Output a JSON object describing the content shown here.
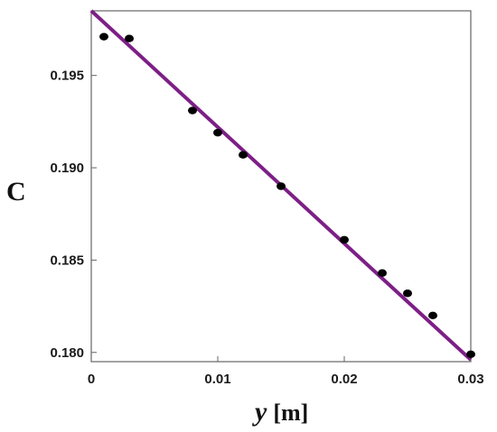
{
  "chart_data": {
    "type": "scatter",
    "xlabel_var": "y",
    "xlabel_unit": "[m]",
    "ylabel": "C",
    "xlim": [
      0,
      0.03
    ],
    "ylim": [
      0.1795,
      0.1985
    ],
    "x_ticks": [
      "0",
      "0.01",
      "0.02",
      "0.03"
    ],
    "y_ticks": [
      "0.180",
      "0.185",
      "0.190",
      "0.195"
    ],
    "grid": false,
    "series": [
      {
        "kind": "points",
        "color": "#000000",
        "x": [
          0.001,
          0.003,
          0.008,
          0.01,
          0.012,
          0.015,
          0.02,
          0.023,
          0.025,
          0.027,
          0.03
        ],
        "y": [
          0.1971,
          0.197,
          0.1931,
          0.1919,
          0.1907,
          0.189,
          0.1861,
          0.1843,
          0.1832,
          0.182,
          0.1799
        ]
      },
      {
        "kind": "fit-line",
        "color": "#7d1f86",
        "x": [
          0,
          0.03
        ],
        "y": [
          0.1985,
          0.1796
        ]
      }
    ]
  }
}
